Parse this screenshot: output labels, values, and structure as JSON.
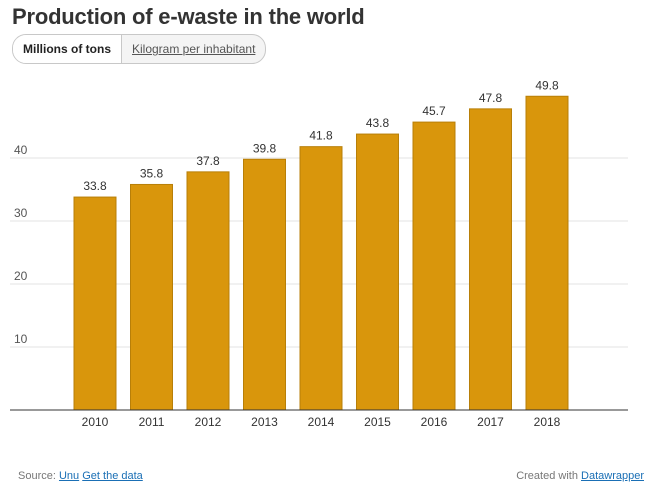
{
  "title": "Production of e-waste in the world",
  "toggle": {
    "active_label": "Millions of tons",
    "inactive_label": "Kilogram per inhabitant"
  },
  "footer": {
    "source_prefix": "Source:",
    "source_link": "Unu",
    "data_link": "Get the data",
    "created_prefix": "Created with",
    "created_link": "Datawrapper"
  },
  "colors": {
    "bar": "#D9960C",
    "bar_stroke": "#B87F08",
    "grid": "#e3e3e3",
    "axis": "#333333"
  },
  "chart_data": {
    "type": "bar",
    "categories": [
      "2010",
      "2011",
      "2012",
      "2013",
      "2014",
      "2015",
      "2016",
      "2017",
      "2018"
    ],
    "values": [
      33.8,
      35.8,
      37.8,
      39.8,
      41.8,
      43.8,
      45.7,
      47.8,
      49.8
    ],
    "labels": [
      "33.8",
      "35.8",
      "37.8",
      "39.8",
      "41.8",
      "43.8",
      "45.7",
      "47.8",
      "49.8"
    ],
    "yticks": [
      10,
      20,
      30,
      40
    ],
    "ylim": [
      0,
      50
    ],
    "grid": true,
    "title": "Production of e-waste in the world",
    "xlabel": "",
    "ylabel": ""
  }
}
